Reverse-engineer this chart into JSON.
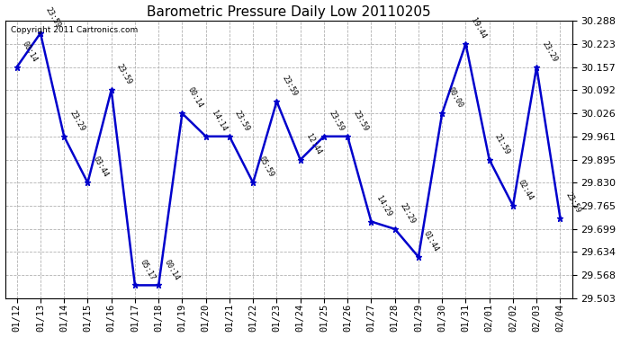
{
  "title": "Barometric Pressure Daily Low 20110205",
  "copyright": "Copyright 2011 Cartronics.com",
  "line_color": "#0000cc",
  "background_color": "#ffffff",
  "grid_color": "#aaaaaa",
  "ylim": [
    29.503,
    30.288
  ],
  "yticks": [
    29.503,
    29.568,
    29.634,
    29.699,
    29.765,
    29.83,
    29.895,
    29.961,
    30.026,
    30.092,
    30.157,
    30.223,
    30.288
  ],
  "dates": [
    "01/12",
    "01/13",
    "01/14",
    "01/15",
    "01/16",
    "01/17",
    "01/18",
    "01/19",
    "01/20",
    "01/21",
    "01/22",
    "01/23",
    "01/24",
    "01/25",
    "01/26",
    "01/27",
    "01/28",
    "01/29",
    "01/30",
    "01/31",
    "02/01",
    "02/02",
    "02/03",
    "02/04"
  ],
  "values": [
    30.157,
    30.253,
    29.961,
    29.83,
    30.092,
    29.54,
    29.54,
    30.026,
    29.961,
    29.961,
    29.83,
    30.06,
    29.895,
    29.961,
    29.961,
    29.72,
    29.699,
    29.62,
    30.026,
    30.223,
    29.895,
    29.765,
    30.157,
    29.73
  ],
  "time_labels": [
    "00:14",
    "23:59",
    "23:29",
    "03:44",
    "23:59",
    "05:17",
    "00:14",
    "00:14",
    "14:14",
    "23:59",
    "05:59",
    "23:59",
    "12:44",
    "23:59",
    "23:59",
    "14:29",
    "22:29",
    "01:44",
    "00:00",
    "19:44",
    "21:59",
    "02:44",
    "23:29",
    "23:59"
  ],
  "marker_style": "*",
  "marker_size": 5,
  "line_width": 1.8
}
